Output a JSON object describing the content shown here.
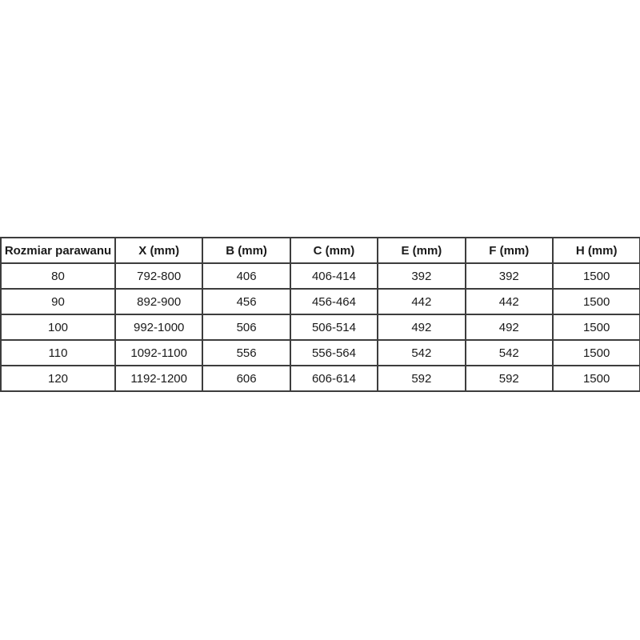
{
  "table": {
    "headers": [
      "Rozmiar parawanu",
      "X (mm)",
      "B (mm)",
      "C (mm)",
      "E (mm)",
      "F (mm)",
      "H (mm)"
    ],
    "rows": [
      [
        "80",
        "792-800",
        "406",
        "406-414",
        "392",
        "392",
        "1500"
      ],
      [
        "90",
        "892-900",
        "456",
        "456-464",
        "442",
        "442",
        "1500"
      ],
      [
        "100",
        "992-1000",
        "506",
        "506-514",
        "492",
        "492",
        "1500"
      ],
      [
        "110",
        "1092-1100",
        "556",
        "556-564",
        "542",
        "542",
        "1500"
      ],
      [
        "120",
        "1192-1200",
        "606",
        "606-614",
        "592",
        "592",
        "1500"
      ]
    ]
  },
  "colors": {
    "border": "#3d3d3d",
    "text": "#1a1a1a",
    "background": "#ffffff"
  }
}
